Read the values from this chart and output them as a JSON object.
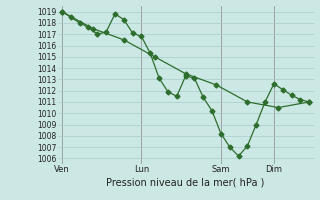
{
  "background_color": "#cce8e4",
  "grid_color": "#aacccc",
  "line_color": "#2d6e2d",
  "title": "Pression niveau de la mer( hPa )",
  "ylim": [
    1005.5,
    1019.5
  ],
  "yticks": [
    1006,
    1007,
    1008,
    1009,
    1010,
    1011,
    1012,
    1013,
    1014,
    1015,
    1016,
    1017,
    1018,
    1019
  ],
  "xtick_labels": [
    "Ven",
    "Lun",
    "Sam",
    "Dim"
  ],
  "xtick_positions": [
    0,
    9,
    18,
    24
  ],
  "xlim": [
    -0.5,
    28.5
  ],
  "series1_x": [
    0,
    1,
    2,
    3,
    4,
    5,
    6,
    7,
    8,
    9,
    10,
    11,
    12,
    13,
    14,
    15,
    16,
    17,
    18,
    19,
    20,
    21,
    22,
    23,
    24,
    25,
    26,
    27,
    28
  ],
  "series1_y": [
    1019.0,
    1018.5,
    1018.0,
    1017.6,
    1017.0,
    1017.2,
    1018.8,
    1018.3,
    1017.1,
    1016.8,
    1015.3,
    1013.1,
    1011.9,
    1011.5,
    1013.3,
    1013.1,
    1011.4,
    1010.2,
    1008.2,
    1007.0,
    1006.2,
    1007.1,
    1009.0,
    1011.0,
    1012.6,
    1012.1,
    1011.6,
    1011.2,
    1011.0
  ],
  "series2_x": [
    0,
    3.5,
    7,
    10.5,
    14,
    17.5,
    21,
    24.5,
    28
  ],
  "series2_y": [
    1019.0,
    1017.5,
    1016.5,
    1015.0,
    1013.5,
    1012.5,
    1011.0,
    1010.5,
    1011.0
  ],
  "marker1": "D",
  "marker2": "D",
  "markersize": 2.5,
  "linewidth": 0.9,
  "tick_fontsize": 5.5,
  "xlabel_fontsize": 7.0
}
